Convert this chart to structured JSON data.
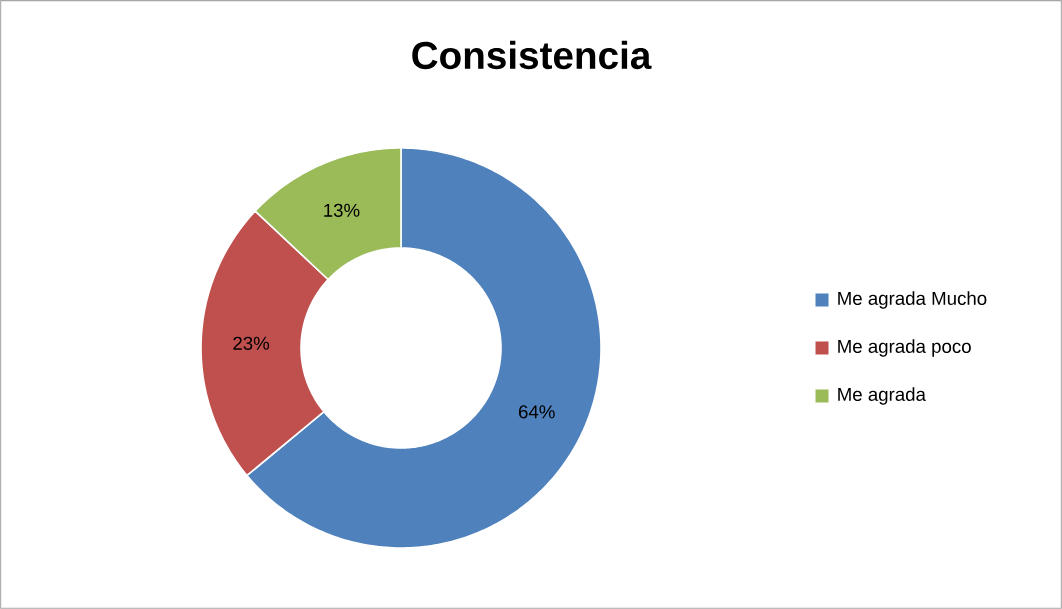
{
  "chart_data": {
    "type": "donut",
    "title": "Consistencia",
    "categories": [
      "Me agrada Mucho",
      "Me agrada poco",
      "Me agrada"
    ],
    "values": [
      64,
      23,
      13
    ],
    "colors": [
      "#4f81bd",
      "#c0504d",
      "#9bbb59"
    ],
    "value_labels": [
      "64%",
      "23%",
      "13%"
    ],
    "legend": "right"
  }
}
